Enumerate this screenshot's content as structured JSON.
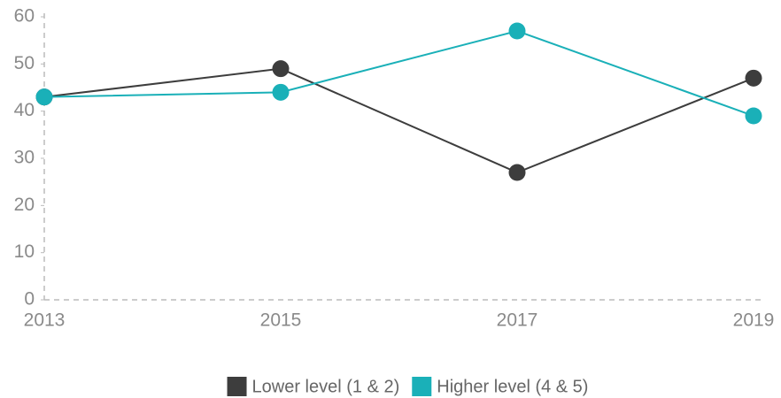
{
  "chart_data": {
    "type": "line",
    "categories": [
      "2013",
      "2015",
      "2017",
      "2019"
    ],
    "series": [
      {
        "name": "Lower level (1 & 2)",
        "color": "#3d3d3d",
        "values": [
          43,
          49,
          27,
          47
        ]
      },
      {
        "name": "Higher level (4 & 5)",
        "color": "#1ab0b8",
        "values": [
          43,
          44,
          57,
          39
        ]
      }
    ],
    "ylim": [
      0,
      60
    ],
    "yticks": [
      0,
      10,
      20,
      30,
      40,
      50,
      60
    ],
    "grid": false,
    "legend": "bottom"
  }
}
